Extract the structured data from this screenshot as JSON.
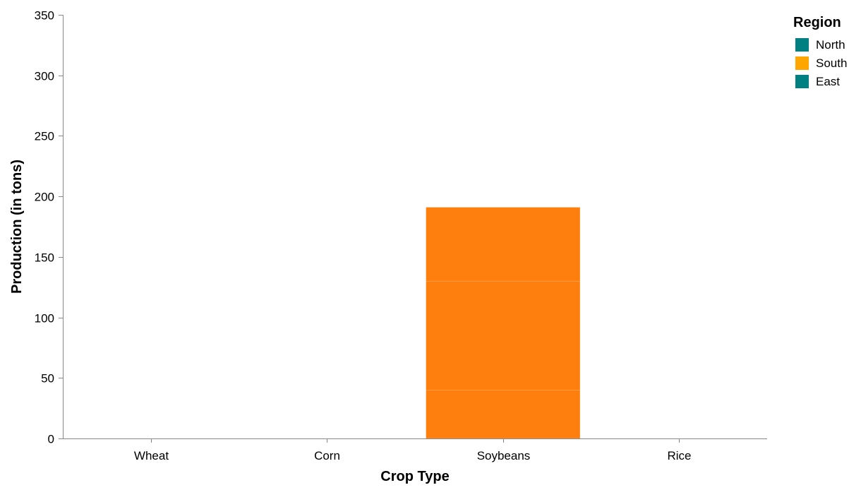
{
  "chart_data": {
    "type": "bar",
    "stacked": true,
    "title": "",
    "xlabel": "Crop Type",
    "ylabel": "Production (in tons)",
    "categories": [
      "Wheat",
      "Corn",
      "Soybeans",
      "Rice"
    ],
    "ylim": [
      0,
      350
    ],
    "yticks": [
      0,
      50,
      100,
      150,
      200,
      250,
      300,
      350
    ],
    "grid": false,
    "legend": {
      "title": "Region",
      "placement": "top-right"
    },
    "series": [
      {
        "name": "North",
        "color": "#ff7f0e",
        "values": [
          0,
          0,
          40,
          0
        ]
      },
      {
        "name": "South",
        "color": "#ff7f0e",
        "values": [
          0,
          0,
          90,
          0
        ]
      },
      {
        "name": "East",
        "color": "#ff7f0e",
        "values": [
          0,
          0,
          61,
          0
        ]
      }
    ],
    "legend_swatch_colors": [
      "#008080",
      "#ffa500",
      "#008080"
    ]
  }
}
